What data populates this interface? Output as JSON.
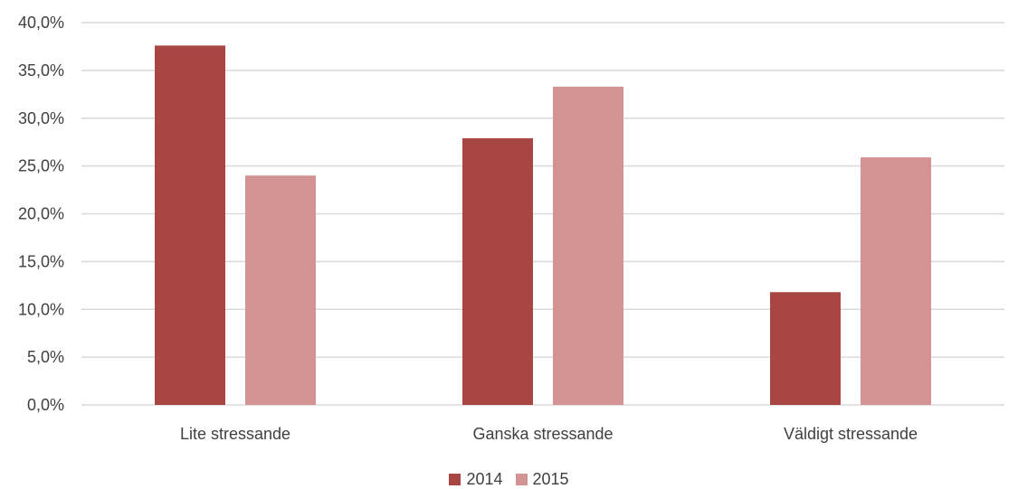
{
  "chart_data": {
    "type": "bar",
    "categories": [
      "Lite stressande",
      "Ganska stressande",
      "Väldigt stressande"
    ],
    "series": [
      {
        "name": "2014",
        "values": [
          37.6,
          27.9,
          11.8
        ],
        "color": "#a84644"
      },
      {
        "name": "2015",
        "values": [
          24.0,
          33.3,
          25.9
        ],
        "color": "#d39393"
      }
    ],
    "ylim": [
      0,
      40
    ],
    "yticks": [
      0,
      5,
      10,
      15,
      20,
      25,
      30,
      35,
      40
    ],
    "ytick_labels": [
      "0,0%",
      "5,0%",
      "10,0%",
      "15,0%",
      "20,0%",
      "25,0%",
      "30,0%",
      "35,0%",
      "40,0%"
    ],
    "grid": true,
    "legend_position": "bottom"
  }
}
